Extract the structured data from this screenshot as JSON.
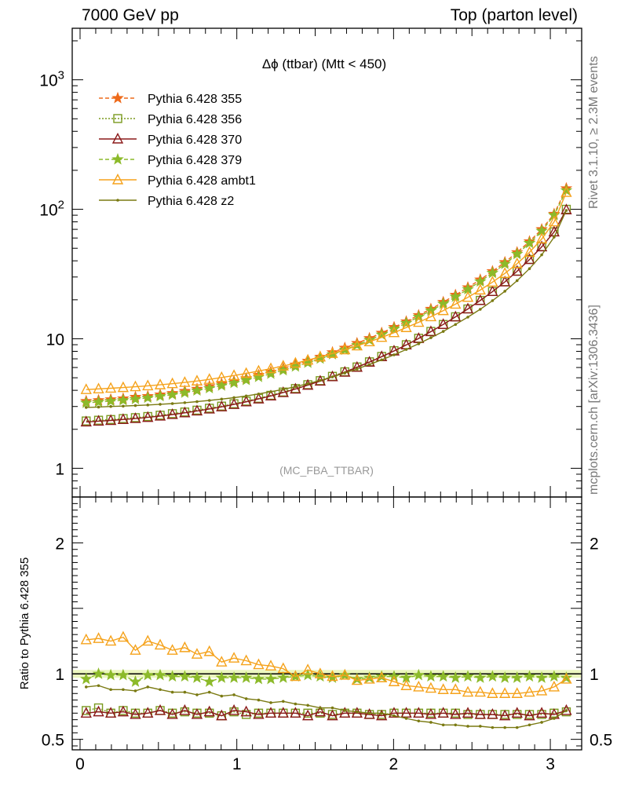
{
  "header": {
    "left": "7000 GeV pp",
    "right": "Top (parton level)"
  },
  "side_labels": {
    "rivet": "Rivet 3.1.10, ≥ 2.3M events",
    "mcplots": "mcplots.cern.ch [arXiv:1306.3436]"
  },
  "chart_data": [
    {
      "panel": "main",
      "type": "line",
      "title": "Δϕ (ttbar) (Mtt < 450)",
      "watermark": "(MC_FBA_TTBAR)",
      "yscale": "log",
      "xlim": [
        -0.05,
        3.2
      ],
      "ylim": [
        0.6,
        2500
      ],
      "yticks": [
        {
          "v": 1,
          "label": "1"
        },
        {
          "v": 10,
          "label": "10"
        },
        {
          "v": 100,
          "label": "10",
          "sup": "2"
        },
        {
          "v": 1000,
          "label": "10",
          "sup": "3"
        }
      ],
      "x": [
        0.039,
        0.118,
        0.196,
        0.275,
        0.353,
        0.432,
        0.511,
        0.589,
        0.668,
        0.746,
        0.825,
        0.903,
        0.982,
        1.06,
        1.139,
        1.217,
        1.296,
        1.374,
        1.453,
        1.532,
        1.61,
        1.689,
        1.767,
        1.846,
        1.924,
        2.003,
        2.081,
        2.16,
        2.238,
        2.317,
        2.395,
        2.474,
        2.553,
        2.631,
        2.71,
        2.788,
        2.867,
        2.945,
        3.024,
        3.102
      ],
      "series": [
        {
          "name": "Pythia 6.428 355",
          "color": "#ee6a1a",
          "dash": "5,3",
          "marker": "star",
          "values": [
            3.3,
            3.35,
            3.4,
            3.45,
            3.55,
            3.6,
            3.7,
            3.8,
            3.95,
            4.1,
            4.3,
            4.5,
            4.7,
            4.95,
            5.25,
            5.55,
            5.9,
            6.3,
            6.75,
            7.25,
            7.85,
            8.5,
            9.25,
            10.1,
            11.1,
            12.3,
            13.6,
            15.2,
            17.0,
            19.2,
            21.8,
            24.9,
            28.6,
            33.2,
            39.0,
            46.5,
            56.5,
            70.0,
            92.0,
            145.0
          ]
        },
        {
          "name": "Pythia 6.428 356",
          "color": "#7a9a1f",
          "dash": "2,2",
          "marker": "square",
          "values": [
            2.32,
            2.35,
            2.38,
            2.42,
            2.46,
            2.51,
            2.57,
            2.64,
            2.72,
            2.81,
            2.91,
            3.02,
            3.15,
            3.3,
            3.47,
            3.66,
            3.88,
            4.13,
            4.42,
            4.75,
            5.13,
            5.56,
            6.06,
            6.64,
            7.31,
            8.09,
            9.0,
            10.1,
            11.4,
            12.9,
            14.8,
            17.0,
            19.8,
            23.2,
            27.6,
            33.3,
            41.0,
            51.5,
            67.0,
            100.0
          ]
        },
        {
          "name": "Pythia 6.428 370",
          "color": "#8b1a1a",
          "dash": "",
          "marker": "triangle",
          "values": [
            2.28,
            2.31,
            2.34,
            2.38,
            2.42,
            2.47,
            2.53,
            2.6,
            2.68,
            2.77,
            2.87,
            2.98,
            3.11,
            3.26,
            3.43,
            3.62,
            3.84,
            4.09,
            4.38,
            4.71,
            5.09,
            5.52,
            6.02,
            6.6,
            7.27,
            8.05,
            8.96,
            10.05,
            11.35,
            12.9,
            14.75,
            17.0,
            19.75,
            23.15,
            27.5,
            33.2,
            40.9,
            51.3,
            66.8,
            99.0
          ]
        },
        {
          "name": "Pythia 6.428 379",
          "color": "#8cba2a",
          "dash": "5,3",
          "marker": "star",
          "values": [
            3.2,
            3.25,
            3.3,
            3.35,
            3.42,
            3.5,
            3.6,
            3.7,
            3.83,
            3.98,
            4.15,
            4.35,
            4.56,
            4.8,
            5.07,
            5.37,
            5.71,
            6.1,
            6.53,
            7.02,
            7.58,
            8.22,
            8.95,
            9.78,
            10.75,
            11.9,
            13.2,
            14.75,
            16.5,
            18.6,
            21.1,
            24.1,
            27.7,
            32.2,
            37.8,
            45.1,
            54.8,
            68.0,
            90.0,
            140.0
          ]
        },
        {
          "name": "Pythia 6.428 ambt1",
          "color": "#f5a21b",
          "dash": "",
          "marker": "triangle",
          "values": [
            4.05,
            4.1,
            4.15,
            4.2,
            4.26,
            4.33,
            4.41,
            4.5,
            4.6,
            4.72,
            4.86,
            5.02,
            5.2,
            5.4,
            5.63,
            5.88,
            6.16,
            6.48,
            6.84,
            7.24,
            7.7,
            8.22,
            8.81,
            9.48,
            10.25,
            11.15,
            12.2,
            13.4,
            14.8,
            16.5,
            18.5,
            20.9,
            23.8,
            27.4,
            32.0,
            38.0,
            46.5,
            59.0,
            80.0,
            135.0
          ]
        },
        {
          "name": "Pythia 6.428 z2",
          "color": "#7a7a12",
          "dash": "",
          "marker": "dot",
          "values": [
            2.95,
            2.97,
            3.0,
            3.02,
            3.05,
            3.08,
            3.12,
            3.16,
            3.21,
            3.27,
            3.34,
            3.42,
            3.51,
            3.62,
            3.75,
            3.9,
            4.07,
            4.27,
            4.5,
            4.77,
            5.08,
            5.44,
            5.85,
            6.33,
            6.88,
            7.52,
            8.27,
            9.15,
            10.2,
            11.4,
            12.9,
            14.7,
            16.9,
            19.7,
            23.3,
            28.1,
            34.8,
            44.5,
            61.0,
            98.0
          ]
        }
      ]
    },
    {
      "panel": "ratio",
      "type": "line",
      "ylabel": "Ratio to Pythia 6.428 355",
      "xlim": [
        -0.05,
        3.2
      ],
      "ylim": [
        0.42,
        2.35
      ],
      "yticks": [
        {
          "v": 0.5,
          "label": "0.5"
        },
        {
          "v": 1,
          "label": "1"
        },
        {
          "v": 2,
          "label": "2"
        }
      ],
      "xticks": [
        {
          "v": 0,
          "label": "0"
        },
        {
          "v": 1,
          "label": "1"
        },
        {
          "v": 2,
          "label": "2"
        },
        {
          "v": 3,
          "label": "3"
        }
      ],
      "series": [
        {
          "name": "Pythia 6.428 356",
          "color": "#7a9a1f",
          "dash": "2,2",
          "marker": "square",
          "values": [
            0.72,
            0.74,
            0.7,
            0.72,
            0.7,
            0.7,
            0.72,
            0.7,
            0.71,
            0.7,
            0.7,
            0.68,
            0.71,
            0.69,
            0.7,
            0.7,
            0.7,
            0.7,
            0.7,
            0.7,
            0.69,
            0.7,
            0.7,
            0.69,
            0.69,
            0.7,
            0.7,
            0.7,
            0.7,
            0.7,
            0.7,
            0.69,
            0.69,
            0.69,
            0.69,
            0.69,
            0.69,
            0.69,
            0.7,
            0.71
          ]
        },
        {
          "name": "Pythia 6.428 370",
          "color": "#8b1a1a",
          "dash": "",
          "marker": "triangle",
          "values": [
            0.7,
            0.71,
            0.7,
            0.71,
            0.69,
            0.7,
            0.72,
            0.69,
            0.72,
            0.69,
            0.71,
            0.68,
            0.72,
            0.71,
            0.69,
            0.7,
            0.7,
            0.7,
            0.68,
            0.71,
            0.68,
            0.7,
            0.7,
            0.69,
            0.68,
            0.7,
            0.7,
            0.7,
            0.69,
            0.7,
            0.69,
            0.7,
            0.69,
            0.69,
            0.68,
            0.7,
            0.68,
            0.7,
            0.69,
            0.72
          ]
        },
        {
          "name": "Pythia 6.428 379",
          "color": "#8cba2a",
          "dash": "5,3",
          "marker": "star",
          "values": [
            0.96,
            1.0,
            0.99,
            0.99,
            0.94,
            0.99,
            0.99,
            0.98,
            0.98,
            0.97,
            0.94,
            0.97,
            0.97,
            0.97,
            0.96,
            0.96,
            0.97,
            0.98,
            0.99,
            0.98,
            0.97,
            0.99,
            0.96,
            0.97,
            0.98,
            0.98,
            0.97,
            0.99,
            0.98,
            0.98,
            0.97,
            0.98,
            0.97,
            0.98,
            0.97,
            0.97,
            0.98,
            0.97,
            0.98,
            0.97
          ]
        },
        {
          "name": "Pythia 6.428 ambt1",
          "color": "#f5a21b",
          "dash": "",
          "marker": "triangle",
          "values": [
            1.26,
            1.27,
            1.25,
            1.28,
            1.18,
            1.25,
            1.22,
            1.18,
            1.2,
            1.15,
            1.17,
            1.09,
            1.12,
            1.1,
            1.07,
            1.06,
            1.04,
            0.98,
            1.03,
            1.0,
            0.98,
            0.99,
            0.95,
            0.96,
            0.97,
            0.94,
            0.91,
            0.9,
            0.89,
            0.88,
            0.88,
            0.86,
            0.86,
            0.85,
            0.85,
            0.85,
            0.86,
            0.87,
            0.9,
            0.96
          ]
        },
        {
          "name": "Pythia 6.428 z2",
          "color": "#7a7a12",
          "dash": "",
          "marker": "dot",
          "values": [
            0.9,
            0.91,
            0.88,
            0.88,
            0.87,
            0.9,
            0.88,
            0.86,
            0.86,
            0.84,
            0.86,
            0.83,
            0.84,
            0.81,
            0.8,
            0.78,
            0.79,
            0.77,
            0.76,
            0.74,
            0.74,
            0.72,
            0.71,
            0.7,
            0.7,
            0.68,
            0.66,
            0.64,
            0.63,
            0.61,
            0.61,
            0.6,
            0.6,
            0.59,
            0.59,
            0.59,
            0.61,
            0.63,
            0.66,
            0.72
          ]
        }
      ]
    }
  ]
}
